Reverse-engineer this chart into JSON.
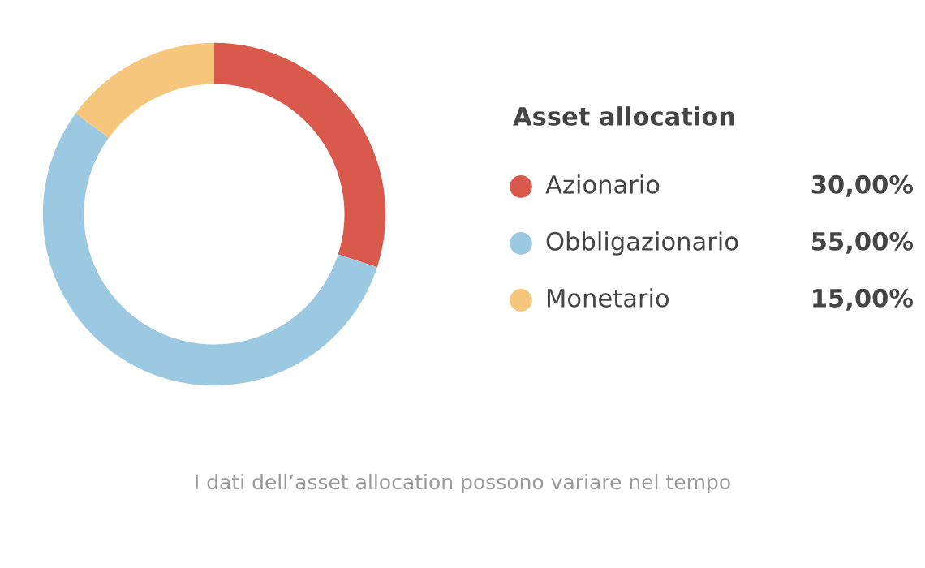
{
  "chart_data": {
    "type": "donut",
    "legend_title": "Asset allocation",
    "legend": "right",
    "categories": [
      "Azionario",
      "Obbligazionario",
      "Monetario"
    ],
    "values": [
      30,
      55,
      15
    ],
    "value_labels": [
      "30,00%",
      "55,00%",
      "15,00%"
    ],
    "colors": [
      "#d9594c",
      "#9bc9e2",
      "#f6c67c"
    ],
    "annotations": [
      "I dati dell’asset allocation possono variare nel tempo"
    ]
  }
}
